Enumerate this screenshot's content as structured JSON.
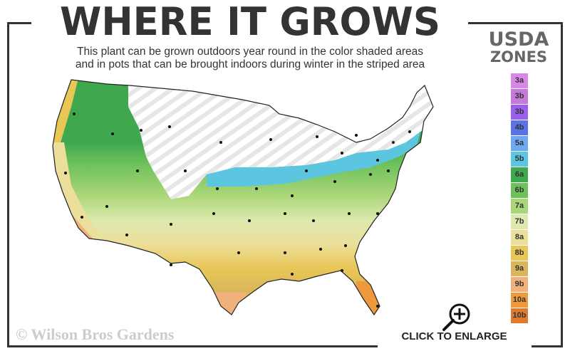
{
  "title": "WHERE IT GROWS",
  "subtitle_line1": "This plant can be grown outdoors year round in the color shaded areas",
  "subtitle_line2": "and in pots that can be brought indoors during winter in the striped area",
  "legend": {
    "title_line1": "USDA",
    "title_line2": "ZONES",
    "zones": [
      {
        "label": "3a",
        "color": "#d987e6"
      },
      {
        "label": "3b",
        "color": "#c57ad9"
      },
      {
        "label": "3b",
        "color": "#9b5ff0"
      },
      {
        "label": "4b",
        "color": "#5a72e6"
      },
      {
        "label": "5a",
        "color": "#6ea8f2"
      },
      {
        "label": "5b",
        "color": "#5cc6e0"
      },
      {
        "label": "6a",
        "color": "#3fa74e"
      },
      {
        "label": "6b",
        "color": "#6cc15a"
      },
      {
        "label": "7a",
        "color": "#a9d678"
      },
      {
        "label": "7b",
        "color": "#dde9ae"
      },
      {
        "label": "8a",
        "color": "#ecdf9c"
      },
      {
        "label": "8b",
        "color": "#e8c757"
      },
      {
        "label": "9a",
        "color": "#d9b65a"
      },
      {
        "label": "9b",
        "color": "#f0b27a"
      },
      {
        "label": "10a",
        "color": "#ee9a3c"
      },
      {
        "label": "10b",
        "color": "#e07a2c"
      }
    ]
  },
  "copyright": "© Wilson Bros Gardens",
  "enlarge_label": "CLICK TO ENLARGE",
  "icons": {
    "enlarge": "magnifier-plus-icon"
  }
}
